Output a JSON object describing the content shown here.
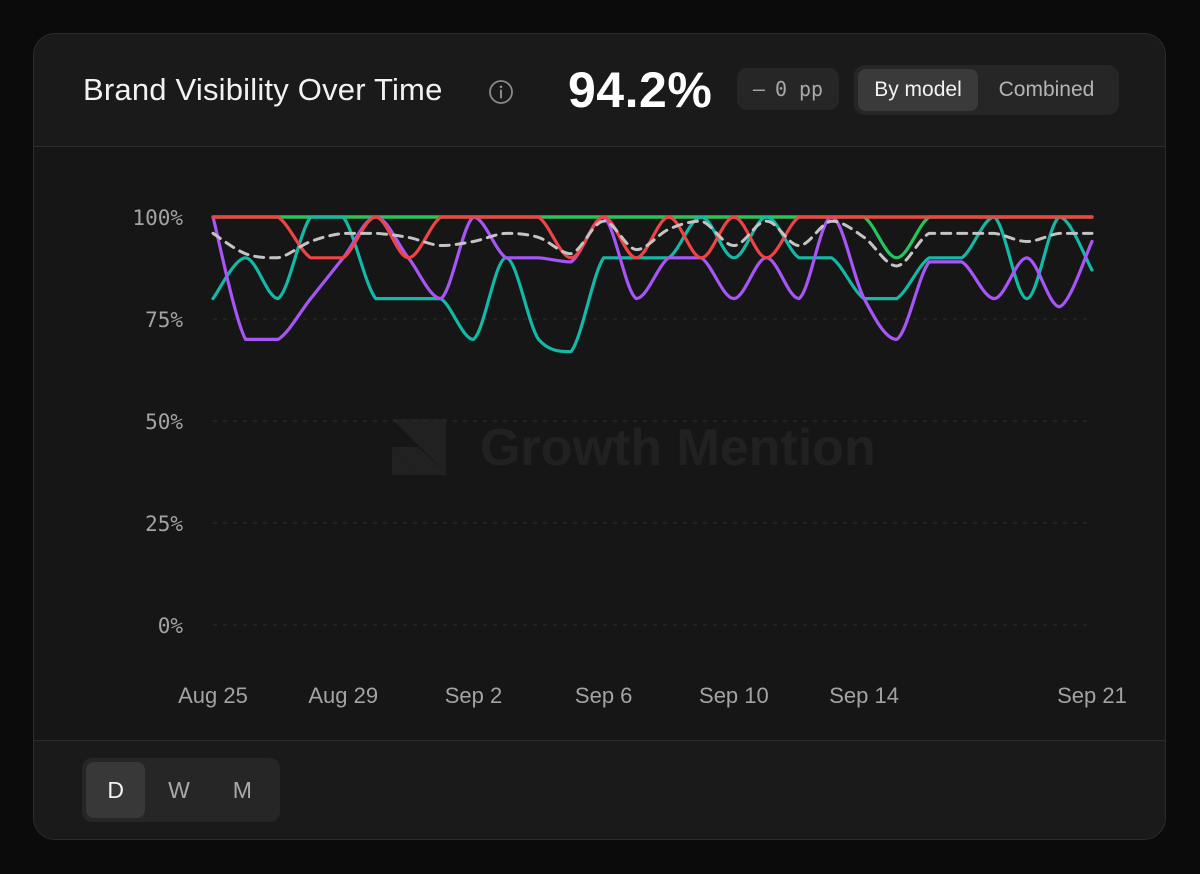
{
  "header": {
    "title": "Brand Visibility Over Time",
    "headline_value": "94.2%",
    "delta": {
      "dash": "—",
      "value": "0 pp"
    },
    "view_toggle": [
      {
        "label": "By model",
        "active": true
      },
      {
        "label": "Combined",
        "active": false
      }
    ]
  },
  "watermark": "Growth Mention",
  "footer": {
    "periods": [
      {
        "label": "D",
        "active": true
      },
      {
        "label": "W",
        "active": false
      },
      {
        "label": "M",
        "active": false
      }
    ]
  },
  "chart_data": {
    "type": "line",
    "x": [
      "Aug 25",
      "Aug 26",
      "Aug 27",
      "Aug 28",
      "Aug 29",
      "Aug 30",
      "Aug 31",
      "Sep 1",
      "Sep 2",
      "Sep 3",
      "Sep 4",
      "Sep 5",
      "Sep 6",
      "Sep 7",
      "Sep 8",
      "Sep 9",
      "Sep 10",
      "Sep 11",
      "Sep 12",
      "Sep 13",
      "Sep 14",
      "Sep 15",
      "Sep 16",
      "Sep 17",
      "Sep 18",
      "Sep 19",
      "Sep 20",
      "Sep 21"
    ],
    "xticks": [
      "Aug 25",
      "Aug 29",
      "Sep 2",
      "Sep 6",
      "Sep 10",
      "Sep 14",
      "Sep 21"
    ],
    "yticks": [
      "0%",
      "25%",
      "50%",
      "75%",
      "100%"
    ],
    "ylim": [
      0,
      100
    ],
    "grid": true,
    "series": [
      {
        "color": "#f59e0b",
        "dashed": false,
        "values": [
          100,
          100,
          100,
          100,
          100,
          100,
          100,
          100,
          100,
          100,
          100,
          100,
          100,
          100,
          100,
          100,
          100,
          100,
          100,
          100,
          100,
          100,
          100,
          100,
          100,
          100,
          100,
          100
        ]
      },
      {
        "color": "#22c55e",
        "dashed": false,
        "values": [
          100,
          100,
          100,
          100,
          100,
          100,
          100,
          100,
          100,
          100,
          100,
          100,
          100,
          100,
          100,
          100,
          100,
          100,
          100,
          100,
          100,
          90,
          100,
          100,
          100,
          100,
          100,
          100
        ]
      },
      {
        "color": "#14b8a6",
        "dashed": false,
        "values": [
          80,
          90,
          80,
          100,
          100,
          80,
          80,
          80,
          70,
          90,
          70,
          67,
          90,
          90,
          90,
          100,
          90,
          100,
          90,
          90,
          80,
          80,
          90,
          90,
          100,
          80,
          100,
          87
        ]
      },
      {
        "color": "#a855f7",
        "dashed": false,
        "values": [
          100,
          70,
          70,
          80,
          90,
          100,
          90,
          80,
          100,
          90,
          90,
          89,
          100,
          80,
          90,
          90,
          80,
          90,
          80,
          100,
          80,
          70,
          89,
          89,
          80,
          90,
          78,
          94
        ]
      },
      {
        "color": "#ef4444",
        "dashed": false,
        "values": [
          100,
          100,
          100,
          90,
          90,
          100,
          90,
          100,
          100,
          100,
          100,
          90,
          100,
          90,
          100,
          90,
          100,
          90,
          100,
          100,
          100,
          100,
          100,
          100,
          100,
          100,
          100,
          100
        ]
      },
      {
        "color": "#c4c4c4",
        "dashed": true,
        "values": [
          96,
          91,
          90,
          94,
          96,
          96,
          95,
          93,
          94,
          96,
          95,
          91,
          99,
          92,
          97,
          99,
          93,
          99,
          93,
          99,
          95,
          88,
          96,
          96,
          96,
          94,
          96,
          96
        ]
      }
    ]
  },
  "colors": {
    "background": "#0b0b0b",
    "card": "#161616",
    "header": "#1a1a1a",
    "pill": "#262626",
    "axis_text": "#a3a3a3",
    "grid": "#2f2f2f"
  },
  "icons": {
    "info": "info-circle-icon",
    "watermark_logo": "growth-mention-logo-icon"
  }
}
